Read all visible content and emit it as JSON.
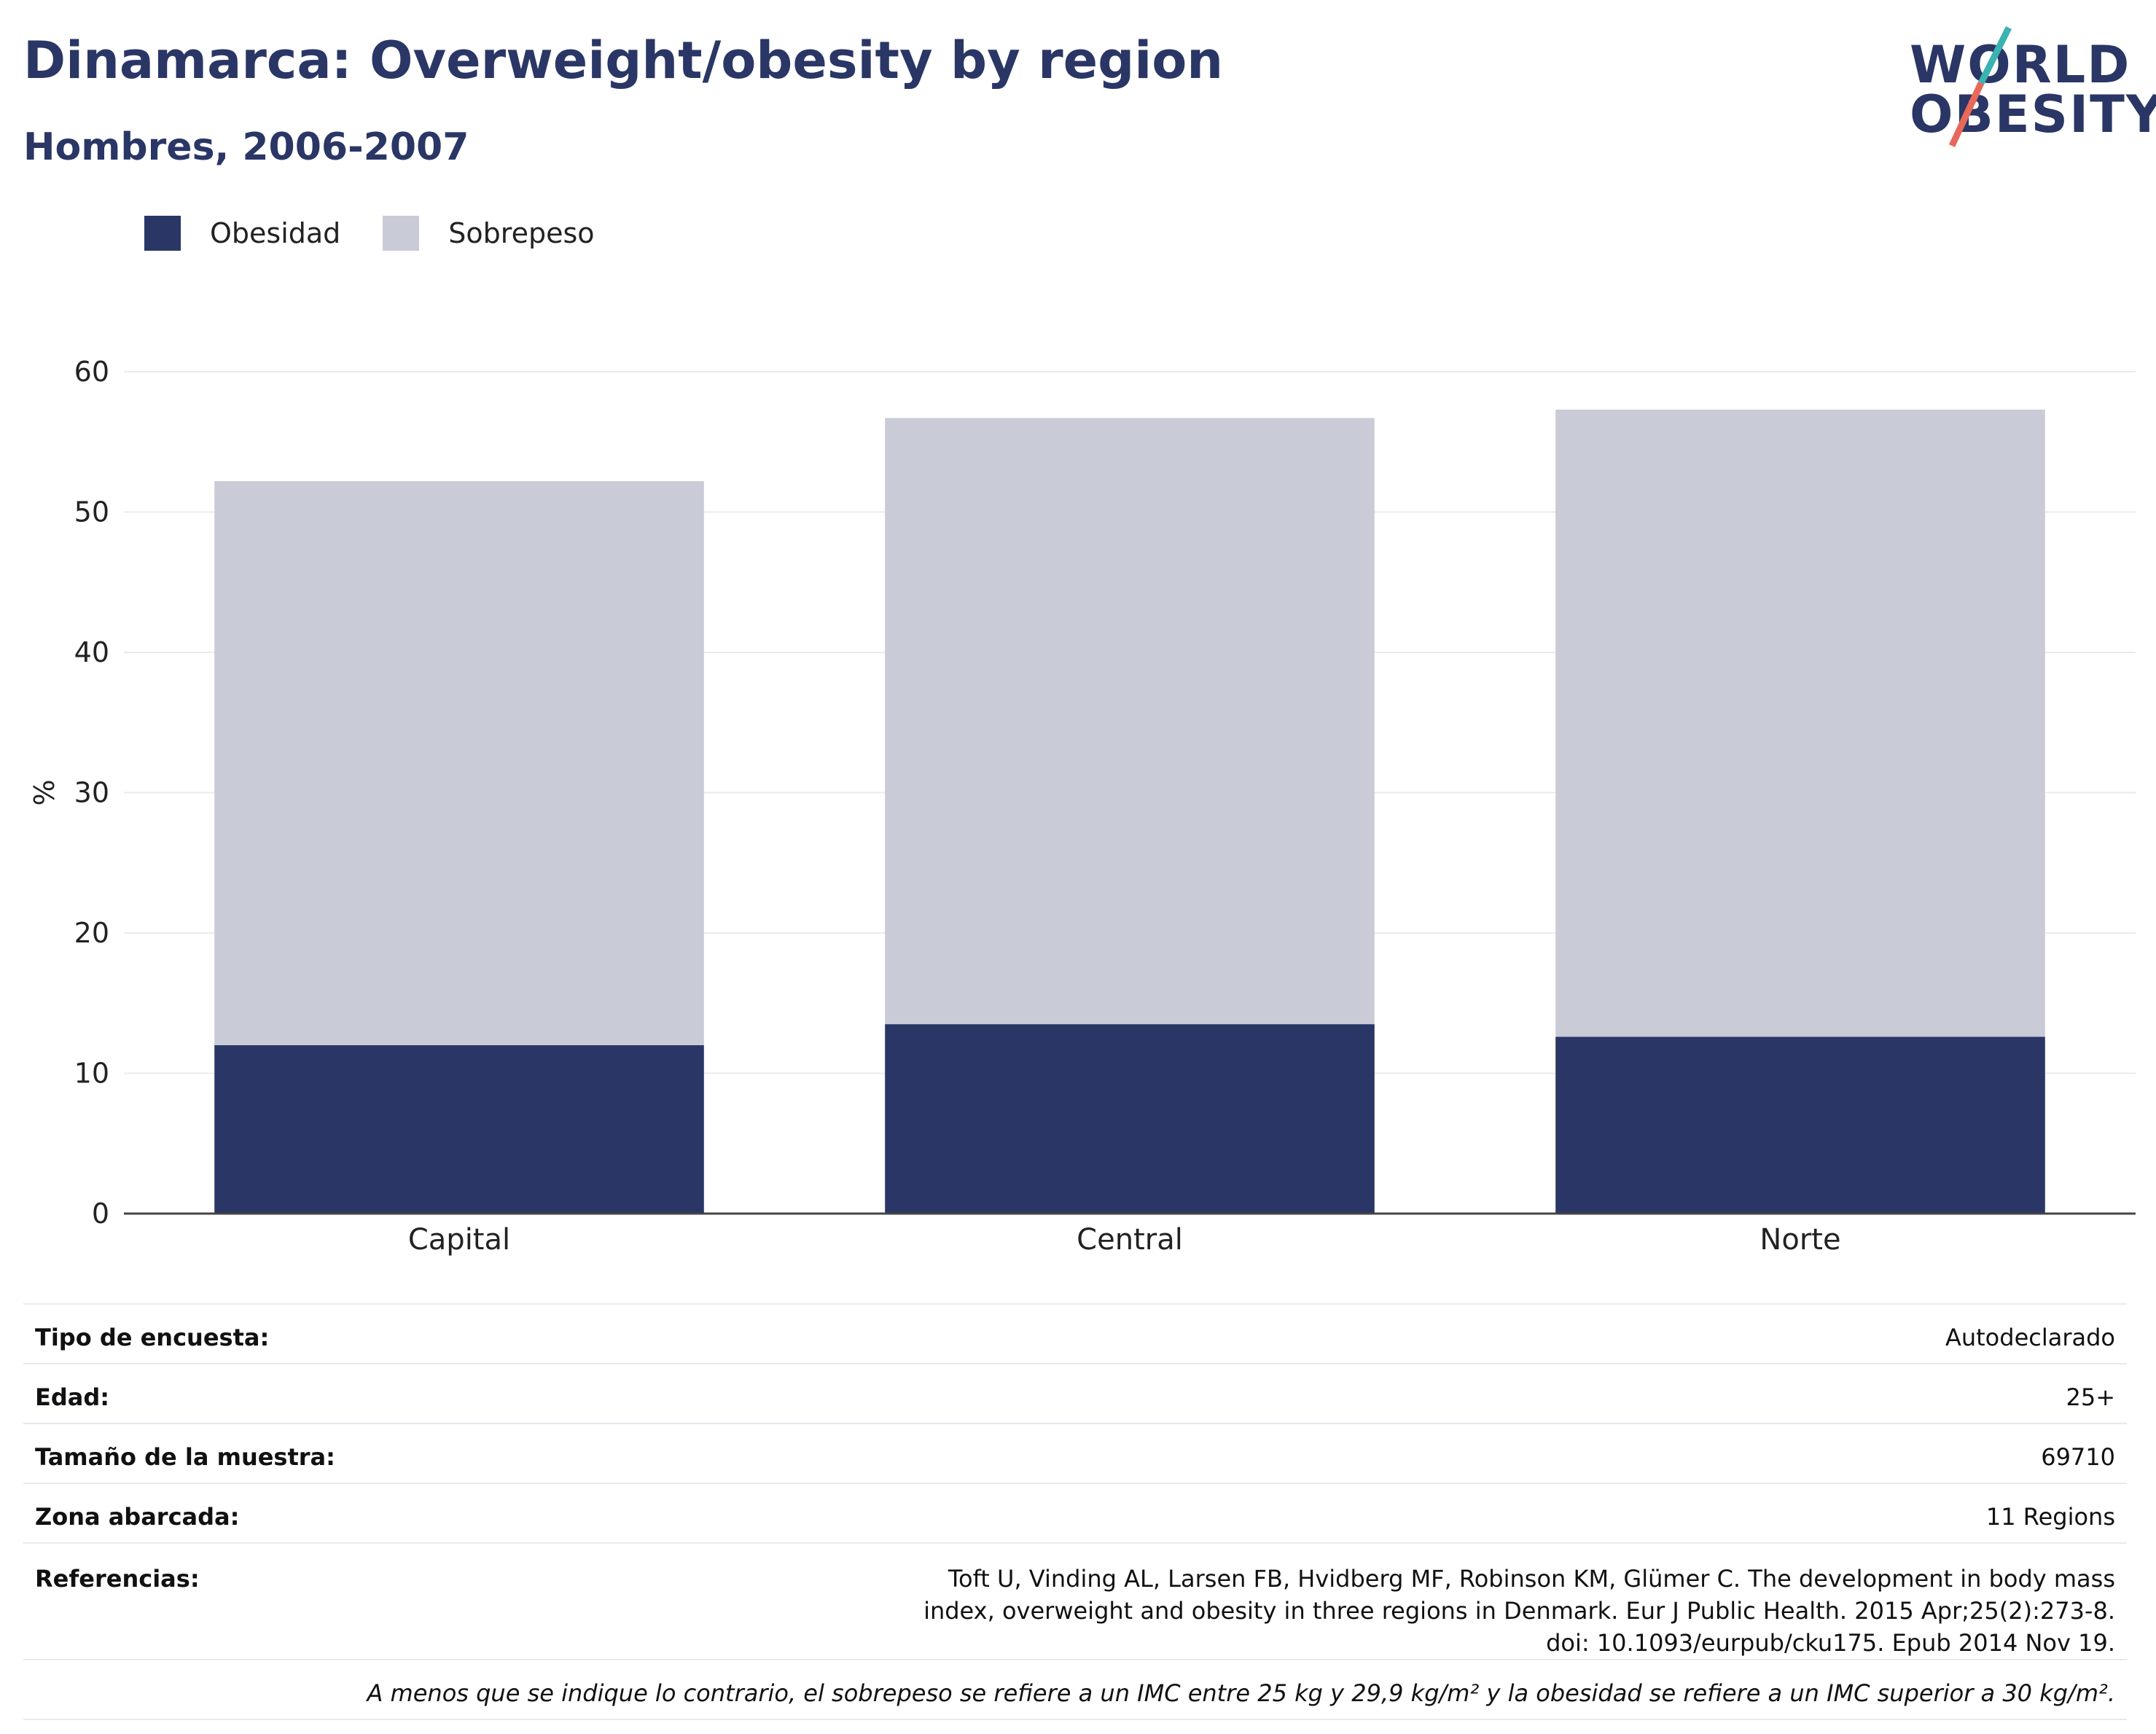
{
  "header": {
    "title": "Dinamarca: Overweight/obesity by region",
    "subtitle": "Hombres, 2006-2007"
  },
  "logo": {
    "line1": "WORLD",
    "line2": "OBESITY",
    "accent_colors": [
      "#3bb3b0",
      "#e8685a"
    ]
  },
  "legend": {
    "items": [
      {
        "label": "Obesidad",
        "color": "#2a3665"
      },
      {
        "label": "Sobrepeso",
        "color": "#c9cbd7"
      }
    ]
  },
  "chart_data": {
    "type": "bar",
    "stacked": true,
    "categories": [
      "Capital",
      "Central",
      "Norte"
    ],
    "series": [
      {
        "name": "Obesidad",
        "color": "#2a3665",
        "values": [
          12.0,
          13.5,
          12.6
        ]
      },
      {
        "name": "Sobrepeso",
        "color": "#c9cbd7",
        "values": [
          40.2,
          43.2,
          44.7
        ]
      }
    ],
    "ylabel": "%",
    "ylim": [
      0,
      60
    ],
    "yticks": [
      0,
      10,
      20,
      30,
      40,
      50,
      60
    ],
    "grid": true,
    "legend_position": "top-left"
  },
  "info": {
    "rows": [
      {
        "key": "Tipo de encuesta:",
        "value": "Autodeclarado"
      },
      {
        "key": "Edad:",
        "value": "25+"
      },
      {
        "key": "Tamaño de la muestra:",
        "value": "69710"
      },
      {
        "key": "Zona abarcada:",
        "value": "11 Regions"
      }
    ],
    "references_key": "Referencias:",
    "references_value": "Toft U, Vinding AL, Larsen FB, Hvidberg MF, Robinson KM, Glümer C. The development in body mass index, overweight and obesity in three regions in Denmark. Eur J Public Health. 2015 Apr;25(2):273-8. doi: 10.1093/eurpub/cku175. Epub 2014 Nov 19.",
    "note": "A menos que se indique lo contrario, el sobrepeso se refiere a un IMC entre 25 kg y 29,9 kg/m² y la obesidad se refiere a un IMC superior a 30 kg/m²."
  }
}
